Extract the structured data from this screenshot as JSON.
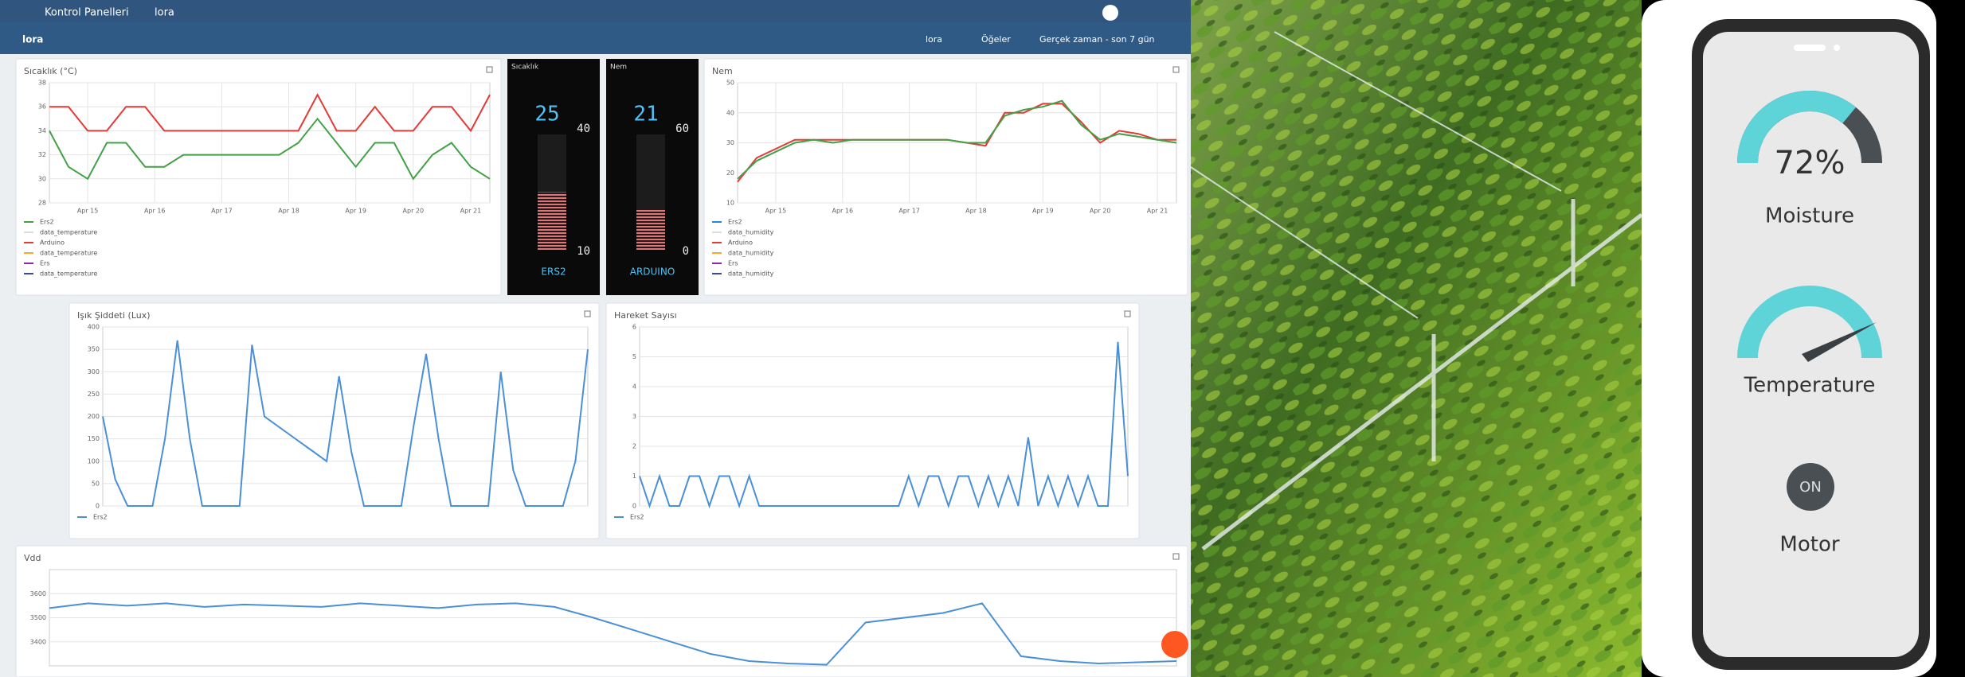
{
  "header": {
    "breadcrumb": "Kontrol Panelleri",
    "dashboard": "lora",
    "subtitle": "lora",
    "entity": "lora",
    "items": "Öğeler",
    "timewindow": "Gerçek zaman - son 7 gün"
  },
  "chart_data": [
    {
      "type": "line",
      "title": "Sıcaklık (°C)",
      "xlim": [
        0,
        23
      ],
      "ylim": [
        28,
        38
      ],
      "yticks": [
        28,
        30,
        32,
        34,
        36,
        38
      ],
      "xticks": [
        {
          "value": 2,
          "label": "Apr 15"
        },
        {
          "value": 5.5,
          "label": "Apr 16"
        },
        {
          "value": 9,
          "label": "Apr 17"
        },
        {
          "value": 12.5,
          "label": "Apr 18"
        },
        {
          "value": 16,
          "label": "Apr 19"
        },
        {
          "value": 19,
          "label": "Apr 20"
        },
        {
          "value": 22,
          "label": "Apr 21"
        }
      ],
      "series": [
        {
          "color": "#e53935",
          "values": [
            36,
            36,
            34,
            34,
            36,
            36,
            34,
            34,
            34,
            34,
            34,
            34,
            34,
            34,
            37,
            34,
            34,
            36,
            34,
            34,
            36,
            36,
            34,
            37
          ]
        },
        {
          "color": "#43a047",
          "values": [
            34,
            31,
            30,
            33,
            33,
            31,
            31,
            32,
            32,
            32,
            32,
            32,
            32,
            33,
            35,
            33,
            31,
            33,
            33,
            30,
            32,
            33,
            31,
            30
          ]
        }
      ],
      "legend": [
        {
          "name": "Ers2",
          "color": "#43a047"
        },
        {
          "name": "data_temperature",
          "color": "#ffffff"
        },
        {
          "name": "Arduino",
          "color": "#e53935"
        },
        {
          "name": "data_temperature",
          "color": "#ffa726"
        },
        {
          "name": "Ers",
          "color": "#8e24aa"
        },
        {
          "name": "data_temperature",
          "color": "#3949ab"
        }
      ]
    },
    {
      "type": "line",
      "title": "Nem",
      "xlim": [
        0,
        23
      ],
      "ylim": [
        10,
        50
      ],
      "yticks": [
        10,
        20,
        30,
        40,
        50
      ],
      "xticks": [
        {
          "value": 2,
          "label": "Apr 15"
        },
        {
          "value": 5.5,
          "label": "Apr 16"
        },
        {
          "value": 9,
          "label": "Apr 17"
        },
        {
          "value": 12.5,
          "label": "Apr 18"
        },
        {
          "value": 16,
          "label": "Apr 19"
        },
        {
          "value": 19,
          "label": "Apr 20"
        },
        {
          "value": 22,
          "label": "Apr 21"
        }
      ],
      "series": [
        {
          "color": "#e53935",
          "values": [
            17,
            25,
            28,
            31,
            31,
            31,
            31,
            31,
            31,
            31,
            31,
            31,
            30,
            29,
            40,
            40,
            43,
            43,
            37,
            30,
            34,
            33,
            31,
            31
          ]
        },
        {
          "color": "#43a047",
          "values": [
            18,
            24,
            27,
            30,
            31,
            30,
            31,
            31,
            31,
            31,
            31,
            31,
            30,
            30,
            39,
            41,
            42,
            44,
            36,
            31,
            33,
            32,
            31,
            30
          ]
        }
      ],
      "legend": [
        {
          "name": "Ers2",
          "color": "#1e88e5"
        },
        {
          "name": "data_humidity",
          "color": "#ffffff"
        },
        {
          "name": "Arduino",
          "color": "#e53935"
        },
        {
          "name": "data_humidity",
          "color": "#ffa726"
        },
        {
          "name": "Ers",
          "color": "#8e24aa"
        },
        {
          "name": "data_humidity",
          "color": "#3949ab"
        }
      ]
    },
    {
      "type": "line",
      "title": "Işık Şiddeti (Lux)",
      "xlim": [
        0,
        39
      ],
      "ylim": [
        0,
        400
      ],
      "yticks": [
        0,
        50,
        100,
        150,
        200,
        250,
        300,
        350,
        400
      ],
      "series": [
        {
          "name": "Ers2",
          "color": "#4a90d9",
          "values": [
            200,
            60,
            0,
            0,
            0,
            150,
            370,
            150,
            0,
            0,
            0,
            0,
            360,
            200,
            180,
            160,
            140,
            120,
            100,
            290,
            120,
            0,
            0,
            0,
            0,
            180,
            340,
            150,
            0,
            0,
            0,
            0,
            300,
            80,
            0,
            0,
            0,
            0,
            100,
            350
          ]
        }
      ]
    },
    {
      "type": "line",
      "title": "Hareket Sayısı",
      "xlim": [
        0,
        49
      ],
      "ylim": [
        0,
        6
      ],
      "yticks": [
        0,
        1,
        2,
        3,
        4,
        5,
        6
      ],
      "series": [
        {
          "name": "Ers2",
          "color": "#4a90d9",
          "values": [
            1,
            0,
            1,
            0,
            0,
            1,
            1,
            0,
            1,
            1,
            0,
            1,
            0,
            0,
            0,
            0,
            0,
            0,
            0,
            0,
            0,
            0,
            0,
            0,
            0,
            0,
            0,
            1,
            0,
            1,
            1,
            0,
            1,
            1,
            0,
            1,
            0,
            1,
            0,
            2.3,
            0,
            1,
            0,
            1,
            0,
            1,
            0,
            0,
            5.5,
            1
          ]
        }
      ]
    },
    {
      "type": "line",
      "title": "Vdd",
      "xlim": [
        0,
        29
      ],
      "ylim": [
        3300,
        3700
      ],
      "yticks": [
        3400,
        3500,
        3600
      ],
      "series": [
        {
          "color": "#4a90d9",
          "values": [
            3540,
            3560,
            3550,
            3560,
            3545,
            3555,
            3550,
            3545,
            3560,
            3550,
            3540,
            3555,
            3560,
            3545,
            3500,
            3450,
            3400,
            3350,
            3320,
            3310,
            3305,
            3480,
            3500,
            3520,
            3560,
            3340,
            3320,
            3310,
            3315,
            3320
          ]
        }
      ]
    }
  ],
  "gauges": [
    {
      "title": "Sıcaklık",
      "value": 25,
      "max": 40,
      "min": 10,
      "label": "ERS2"
    },
    {
      "title": "Nem",
      "value": 21,
      "max": 60,
      "min": 0,
      "label": "ARDUINO"
    }
  ],
  "phone": {
    "moisture": {
      "value": 72,
      "value_label": "72%",
      "label": "Moisture"
    },
    "temperature": {
      "label": "Temperature"
    },
    "motor": {
      "state": "ON",
      "label": "Motor"
    }
  }
}
